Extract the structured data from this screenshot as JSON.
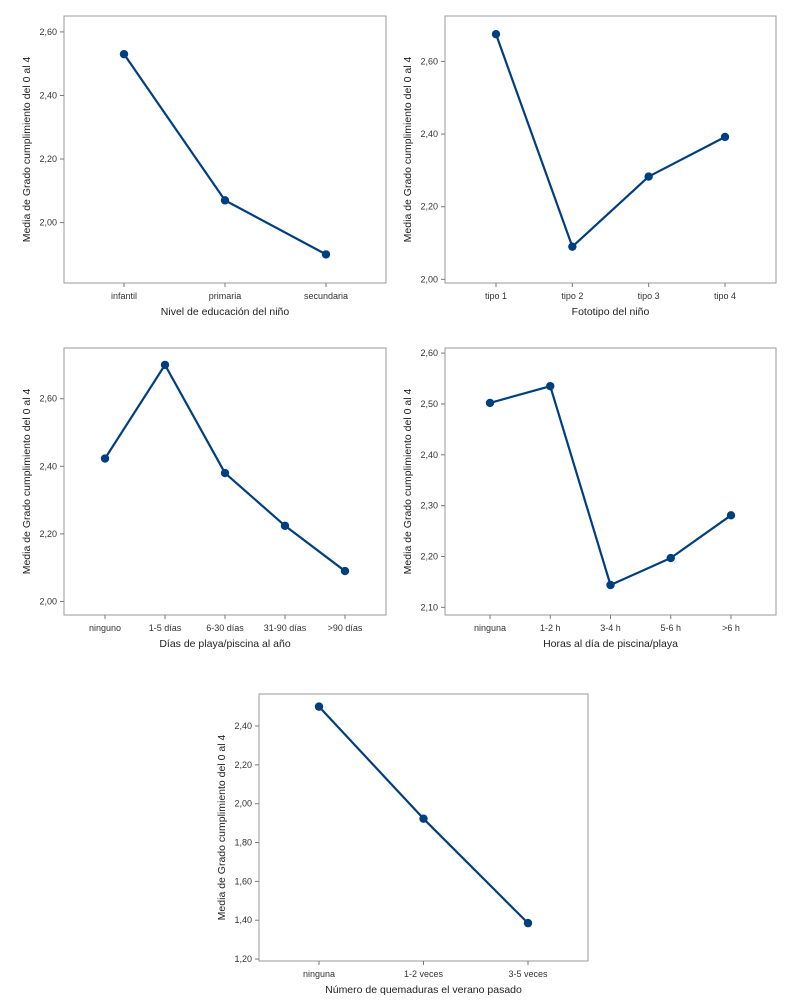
{
  "chart_data": [
    {
      "type": "line",
      "title": "",
      "xlabel": "Nivel de educación del niño",
      "ylabel": "Media de Grado cumplimiento del 0 al 4",
      "categories": [
        "infantil",
        "primaria",
        "secundaria"
      ],
      "values": [
        2.53,
        2.07,
        1.9
      ],
      "ylim": [
        1.81,
        2.65
      ],
      "yticks": [
        2.0,
        2.2,
        2.4,
        2.6
      ],
      "ytick_labels": [
        "2,00",
        "2,20",
        "2,40",
        "2,60"
      ],
      "grid": false,
      "color": "#003F7F"
    },
    {
      "type": "line",
      "title": "",
      "xlabel": "Fototipo del niño",
      "ylabel": "Media de Grado cumplimiento del 0 al 4",
      "categories": [
        "tipo 1",
        "tipo 2",
        "tipo 3",
        "tipo 4"
      ],
      "values": [
        2.675,
        2.09,
        2.283,
        2.392
      ],
      "ylim": [
        1.99,
        2.725
      ],
      "yticks": [
        2.0,
        2.2,
        2.4,
        2.6
      ],
      "ytick_labels": [
        "2,00",
        "2,20",
        "2,40",
        "2,60"
      ],
      "grid": false,
      "color": "#003F7F"
    },
    {
      "type": "line",
      "title": "",
      "xlabel": "Días de playa/piscina al año",
      "ylabel": "Media de Grado cumplimiento del 0 al 4",
      "categories": [
        "ninguno",
        "1-5 días",
        "6-30 días",
        "31-90 días",
        ">90 días"
      ],
      "values": [
        2.423,
        2.7,
        2.38,
        2.224,
        2.09
      ],
      "ylim": [
        1.96,
        2.75
      ],
      "yticks": [
        2.0,
        2.2,
        2.4,
        2.6
      ],
      "ytick_labels": [
        "2,00",
        "2,20",
        "2,40",
        "2,60"
      ],
      "grid": false,
      "color": "#003F7F"
    },
    {
      "type": "line",
      "title": "",
      "xlabel": "Horas al día de piscina/playa",
      "ylabel": "Media de Grado cumplimiento del 0 al 4",
      "categories": [
        "ninguna",
        "1-2 h",
        "3-4 h",
        "5-6 h",
        ">6 h"
      ],
      "values": [
        2.502,
        2.535,
        2.144,
        2.197,
        2.281
      ],
      "ylim": [
        2.085,
        2.61
      ],
      "yticks": [
        2.1,
        2.2,
        2.3,
        2.4,
        2.5,
        2.6
      ],
      "ytick_labels": [
        "2,10",
        "2,20",
        "2,30",
        "2,40",
        "2,50",
        "2,60"
      ],
      "grid": false,
      "color": "#003F7F"
    },
    {
      "type": "line",
      "title": "",
      "xlabel": "Número de quemaduras el verano pasado",
      "ylabel": "Media de Grado cumplimiento del 0 al 4",
      "categories": [
        "ninguna",
        "1-2 veces",
        "3-5 veces"
      ],
      "values": [
        2.5,
        1.923,
        1.385
      ],
      "ylim": [
        1.19,
        2.565
      ],
      "yticks": [
        1.2,
        1.4,
        1.6,
        1.8,
        2.0,
        2.2,
        2.4
      ],
      "ytick_labels": [
        "1,20",
        "1,40",
        "1,60",
        "1,80",
        "2,00",
        "2,20",
        "2,40"
      ],
      "grid": false,
      "color": "#003F7F"
    }
  ]
}
